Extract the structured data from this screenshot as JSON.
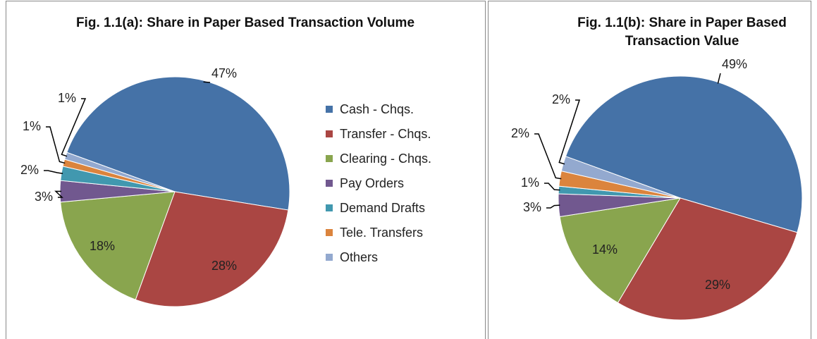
{
  "chart_data": [
    {
      "type": "pie",
      "title": "Fig. 1.1(a): Share in Paper Based Transaction Volume",
      "categories": [
        "Cash - Chqs.",
        "Transfer - Chqs.",
        "Clearing - Chqs.",
        "Pay Orders",
        "Demand Drafts",
        "Tele. Transfers",
        "Others"
      ],
      "values": [
        47,
        28,
        18,
        3,
        2,
        1,
        1
      ],
      "value_labels": [
        "47%",
        "28%",
        "18%",
        "3%",
        "2%",
        "1%",
        "1%"
      ],
      "colors": [
        "#4572a7",
        "#aa4643",
        "#89a54e",
        "#71588f",
        "#4198af",
        "#db843d",
        "#93a9cf"
      ],
      "legend": "right"
    },
    {
      "type": "pie",
      "title": "Fig. 1.1(b): Share in Paper Based Transaction Value",
      "values": [
        49,
        29,
        14,
        3,
        1,
        2,
        2
      ],
      "value_labels": [
        "49%",
        "29%",
        "14%",
        "3%",
        "1%",
        "2%",
        "2%"
      ],
      "colors": [
        "#4572a7",
        "#aa4643",
        "#89a54e",
        "#71588f",
        "#4198af",
        "#db843d",
        "#93a9cf"
      ]
    }
  ]
}
